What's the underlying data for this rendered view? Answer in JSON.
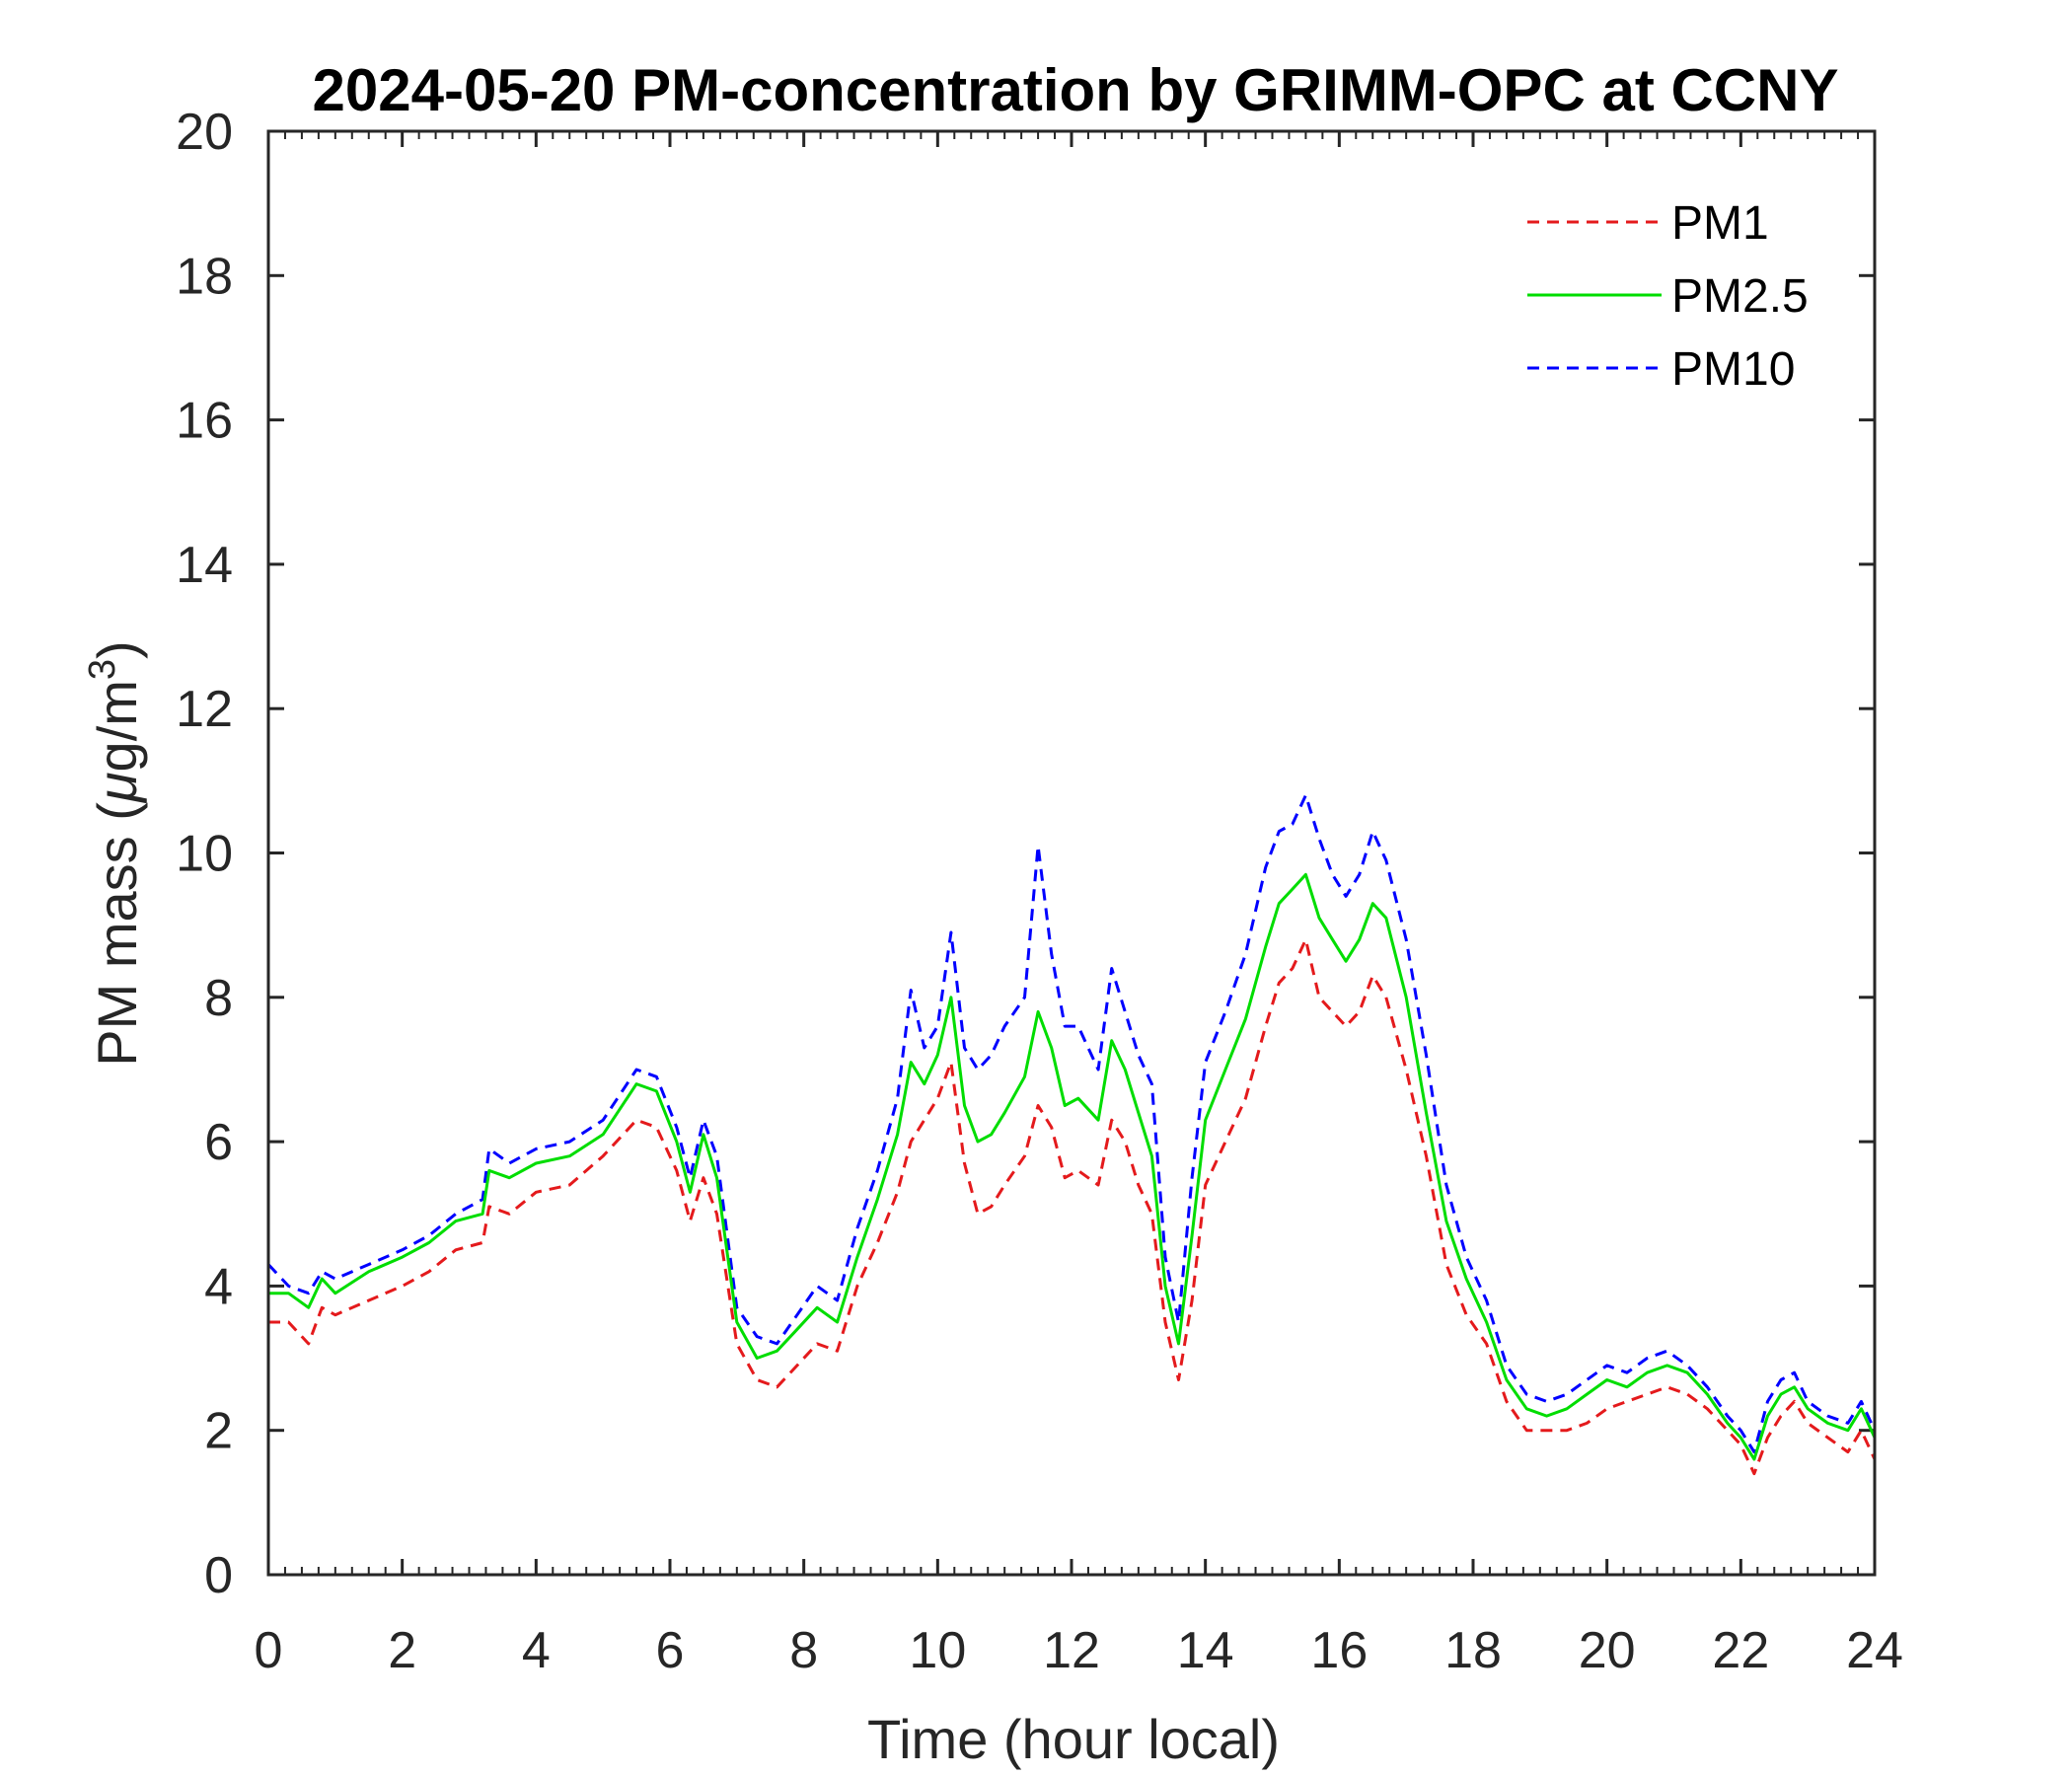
{
  "chart_data": {
    "type": "line",
    "title": "2024-05-20 PM-concentration by GRIMM-OPC at CCNY",
    "xlabel": "Time (hour local)",
    "ylabel_prefix": "PM mass (",
    "ylabel_mu": "μ",
    "ylabel_unit": "g/m",
    "ylabel_sup": "3",
    "ylabel_suffix": ")",
    "xlim": [
      0,
      24
    ],
    "ylim": [
      0,
      20
    ],
    "xticks": [
      0,
      2,
      4,
      6,
      8,
      10,
      12,
      14,
      16,
      18,
      20,
      22,
      24
    ],
    "yticks": [
      0,
      2,
      4,
      6,
      8,
      10,
      12,
      14,
      16,
      18,
      20
    ],
    "grid": false,
    "legend_position": "top-right",
    "series": [
      {
        "name": "PM1",
        "color": "#e41a1c",
        "style": "dashed",
        "x": [
          0,
          0.3,
          0.6,
          0.8,
          1,
          1.5,
          2,
          2.4,
          2.8,
          3.2,
          3.3,
          3.6,
          4,
          4.5,
          5,
          5.5,
          5.8,
          6.1,
          6.3,
          6.5,
          6.7,
          7,
          7.3,
          7.6,
          7.9,
          8.2,
          8.5,
          8.8,
          9.1,
          9.4,
          9.6,
          9.8,
          10,
          10.2,
          10.4,
          10.6,
          10.8,
          11,
          11.3,
          11.5,
          11.7,
          11.9,
          12.1,
          12.4,
          12.6,
          12.8,
          13,
          13.2,
          13.4,
          13.6,
          13.8,
          14,
          14.3,
          14.6,
          14.9,
          15.1,
          15.3,
          15.5,
          15.7,
          15.9,
          16.1,
          16.3,
          16.5,
          16.7,
          17,
          17.3,
          17.6,
          17.9,
          18.2,
          18.5,
          18.8,
          19.1,
          19.4,
          19.7,
          20,
          20.3,
          20.6,
          20.9,
          21.2,
          21.5,
          21.8,
          22,
          22.2,
          22.4,
          22.6,
          22.8,
          23,
          23.3,
          23.6,
          23.8,
          24
        ],
        "values": [
          3.5,
          3.5,
          3.2,
          3.7,
          3.6,
          3.8,
          4.0,
          4.2,
          4.5,
          4.6,
          5.1,
          5.0,
          5.3,
          5.4,
          5.8,
          6.3,
          6.2,
          5.6,
          4.9,
          5.5,
          5.0,
          3.2,
          2.7,
          2.6,
          2.9,
          3.2,
          3.1,
          4.0,
          4.6,
          5.3,
          6.0,
          6.3,
          6.6,
          7.1,
          5.7,
          5.0,
          5.1,
          5.4,
          5.8,
          6.5,
          6.2,
          5.5,
          5.6,
          5.4,
          6.3,
          6.0,
          5.4,
          5.0,
          3.5,
          2.7,
          3.8,
          5.4,
          6.0,
          6.6,
          7.6,
          8.2,
          8.4,
          8.8,
          8.0,
          7.8,
          7.6,
          7.8,
          8.3,
          8.0,
          7.0,
          5.8,
          4.3,
          3.6,
          3.2,
          2.4,
          2.0,
          2.0,
          2.0,
          2.1,
          2.3,
          2.4,
          2.5,
          2.6,
          2.5,
          2.3,
          2.0,
          1.8,
          1.4,
          1.9,
          2.2,
          2.4,
          2.1,
          1.9,
          1.7,
          2.0,
          1.6
        ]
      },
      {
        "name": "PM2.5",
        "color": "#00dd00",
        "style": "solid",
        "x": [
          0,
          0.3,
          0.6,
          0.8,
          1,
          1.5,
          2,
          2.4,
          2.8,
          3.2,
          3.3,
          3.6,
          4,
          4.5,
          5,
          5.5,
          5.8,
          6.1,
          6.3,
          6.5,
          6.7,
          7,
          7.3,
          7.6,
          7.9,
          8.2,
          8.5,
          8.8,
          9.1,
          9.4,
          9.6,
          9.8,
          10,
          10.2,
          10.4,
          10.6,
          10.8,
          11,
          11.3,
          11.5,
          11.7,
          11.9,
          12.1,
          12.4,
          12.6,
          12.8,
          13,
          13.2,
          13.4,
          13.6,
          13.8,
          14,
          14.3,
          14.6,
          14.9,
          15.1,
          15.3,
          15.5,
          15.7,
          15.9,
          16.1,
          16.3,
          16.5,
          16.7,
          17,
          17.3,
          17.6,
          17.9,
          18.2,
          18.5,
          18.8,
          19.1,
          19.4,
          19.7,
          20,
          20.3,
          20.6,
          20.9,
          21.2,
          21.5,
          21.8,
          22,
          22.2,
          22.4,
          22.6,
          22.8,
          23,
          23.3,
          23.6,
          23.8,
          24
        ],
        "values": [
          3.9,
          3.9,
          3.7,
          4.1,
          3.9,
          4.2,
          4.4,
          4.6,
          4.9,
          5.0,
          5.6,
          5.5,
          5.7,
          5.8,
          6.1,
          6.8,
          6.7,
          6.0,
          5.3,
          6.1,
          5.5,
          3.5,
          3.0,
          3.1,
          3.4,
          3.7,
          3.5,
          4.4,
          5.2,
          6.1,
          7.1,
          6.8,
          7.2,
          8.0,
          6.5,
          6.0,
          6.1,
          6.4,
          6.9,
          7.8,
          7.3,
          6.5,
          6.6,
          6.3,
          7.4,
          7.0,
          6.4,
          5.8,
          4.0,
          3.2,
          4.7,
          6.3,
          7.0,
          7.7,
          8.7,
          9.3,
          9.5,
          9.7,
          9.1,
          8.8,
          8.5,
          8.8,
          9.3,
          9.1,
          8.0,
          6.4,
          4.9,
          4.1,
          3.5,
          2.7,
          2.3,
          2.2,
          2.3,
          2.5,
          2.7,
          2.6,
          2.8,
          2.9,
          2.8,
          2.5,
          2.1,
          1.9,
          1.6,
          2.2,
          2.5,
          2.6,
          2.3,
          2.1,
          2.0,
          2.3,
          1.9
        ]
      },
      {
        "name": "PM10",
        "color": "#0000ff",
        "style": "dashed",
        "x": [
          0,
          0.3,
          0.6,
          0.8,
          1,
          1.5,
          2,
          2.4,
          2.8,
          3.2,
          3.3,
          3.6,
          4,
          4.5,
          5,
          5.5,
          5.8,
          6.1,
          6.3,
          6.5,
          6.7,
          7,
          7.3,
          7.6,
          7.9,
          8.2,
          8.5,
          8.8,
          9.1,
          9.4,
          9.6,
          9.8,
          10,
          10.2,
          10.4,
          10.6,
          10.8,
          11,
          11.3,
          11.5,
          11.7,
          11.9,
          12.1,
          12.4,
          12.6,
          12.8,
          13,
          13.2,
          13.4,
          13.6,
          13.8,
          14,
          14.3,
          14.6,
          14.9,
          15.1,
          15.3,
          15.5,
          15.7,
          15.9,
          16.1,
          16.3,
          16.5,
          16.7,
          17,
          17.3,
          17.6,
          17.9,
          18.2,
          18.5,
          18.8,
          19.1,
          19.4,
          19.7,
          20,
          20.3,
          20.6,
          20.9,
          21.2,
          21.5,
          21.8,
          22,
          22.2,
          22.4,
          22.6,
          22.8,
          23,
          23.3,
          23.6,
          23.8,
          24
        ],
        "values": [
          4.3,
          4.0,
          3.9,
          4.2,
          4.1,
          4.3,
          4.5,
          4.7,
          5.0,
          5.2,
          5.9,
          5.7,
          5.9,
          6.0,
          6.3,
          7.0,
          6.9,
          6.2,
          5.5,
          6.3,
          5.8,
          3.7,
          3.3,
          3.2,
          3.6,
          4.0,
          3.8,
          4.8,
          5.6,
          6.6,
          8.1,
          7.3,
          7.6,
          8.9,
          7.3,
          7.0,
          7.2,
          7.6,
          8.0,
          10.1,
          8.6,
          7.6,
          7.6,
          7.0,
          8.4,
          7.8,
          7.2,
          6.8,
          4.4,
          3.5,
          5.5,
          7.1,
          7.8,
          8.6,
          9.8,
          10.3,
          10.4,
          10.8,
          10.2,
          9.7,
          9.4,
          9.7,
          10.3,
          9.9,
          8.8,
          7.2,
          5.4,
          4.4,
          3.8,
          2.9,
          2.5,
          2.4,
          2.5,
          2.7,
          2.9,
          2.8,
          3.0,
          3.1,
          2.9,
          2.6,
          2.2,
          2.0,
          1.7,
          2.4,
          2.7,
          2.8,
          2.4,
          2.2,
          2.1,
          2.4,
          2.0
        ]
      }
    ]
  }
}
